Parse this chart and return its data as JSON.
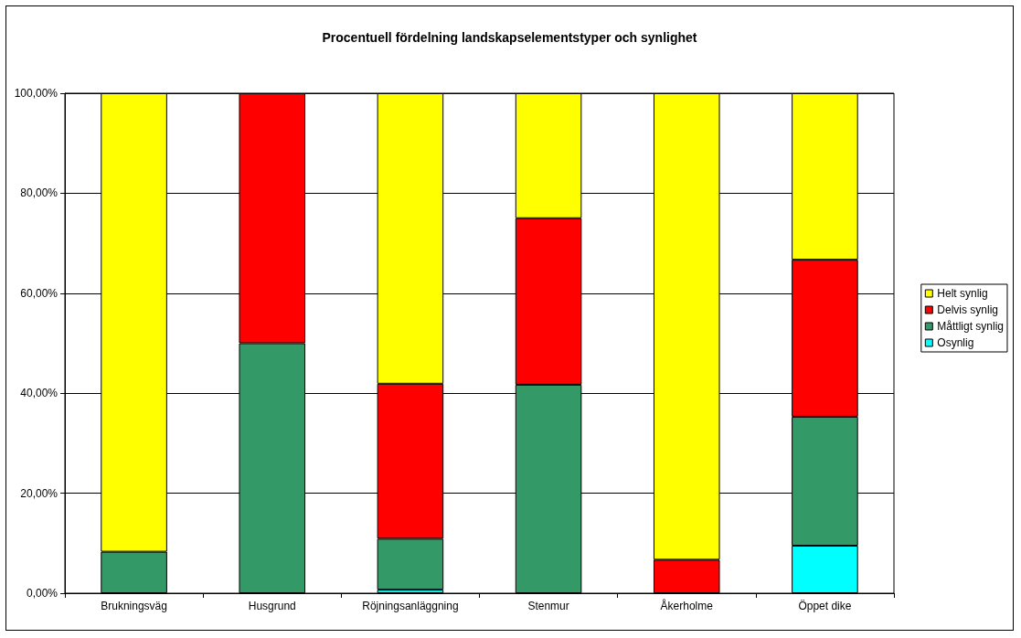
{
  "chart_data": {
    "type": "bar",
    "stacked": true,
    "title": "Procentuell fördelning landskapselementstyper och synlighet",
    "categories": [
      "Brukningsväg",
      "Husgrund",
      "Röjningsanläggning",
      "Stenmur",
      "Åkerholme",
      "Öppet dike"
    ],
    "series": [
      {
        "name": "Osynlig",
        "color": "#00ffff",
        "values": [
          null,
          null,
          0.7,
          null,
          null,
          9.5
        ]
      },
      {
        "name": "Måttligt synlig",
        "color": "#339966",
        "values": [
          8.3,
          50,
          10.2,
          41.7,
          null,
          25.8
        ]
      },
      {
        "name": "Delvis synlig",
        "color": "#ff0000",
        "values": [
          null,
          50,
          31.0,
          33.3,
          6.7,
          31.4
        ]
      },
      {
        "name": "Helt synlig",
        "color": "#ffff00",
        "values": [
          91.7,
          null,
          58.1,
          25,
          93.3,
          33.3
        ]
      }
    ],
    "ylim": [
      0,
      100
    ],
    "yticks": [
      {
        "value": 0,
        "label": "0,00%"
      },
      {
        "value": 20,
        "label": "20,00%"
      },
      {
        "value": 40,
        "label": "40,00%"
      },
      {
        "value": 60,
        "label": "60,00%"
      },
      {
        "value": 80,
        "label": "80,00%"
      },
      {
        "value": 100,
        "label": "100,00%"
      }
    ],
    "grid": "y",
    "legend": "right"
  }
}
